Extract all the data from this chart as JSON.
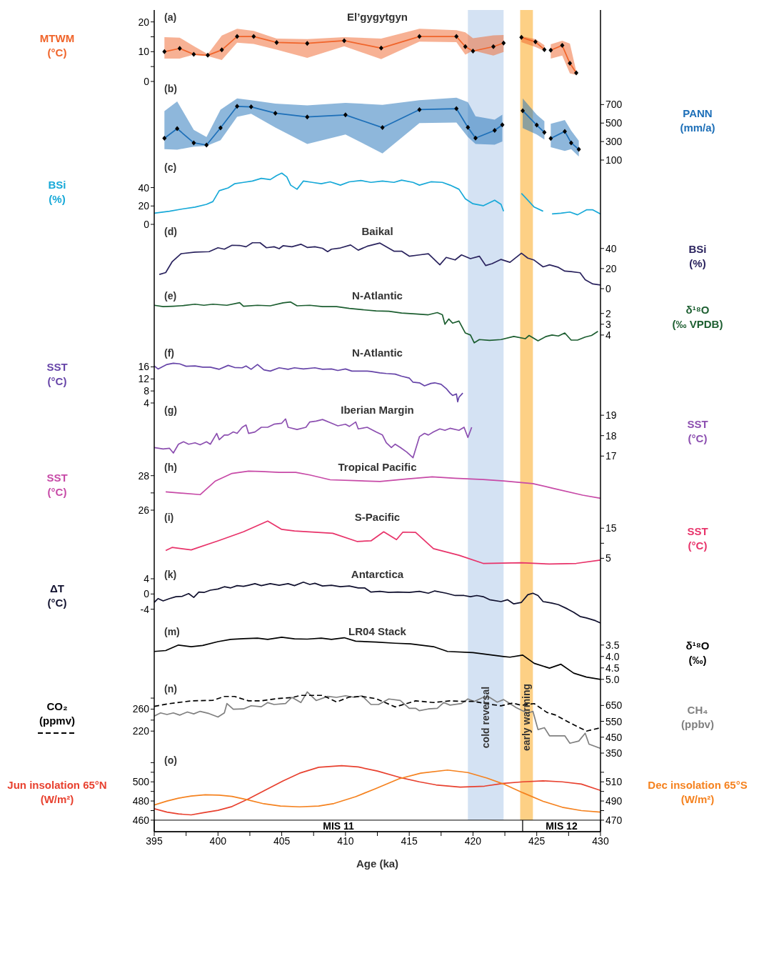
{
  "chart_data": [
    {
      "type": "line",
      "title": "El’gygytgyn",
      "ylabel": "MTWM (°C)",
      "annotations": [
        "(a)"
      ],
      "marker": "diamond",
      "tick_labels": "y",
      "xlim": [
        395,
        430
      ],
      "ylim": [
        0,
        24
      ],
      "yticks": [
        0,
        {
          "value": 5,
          "label": null
        },
        10,
        {
          "value": 15,
          "label": null
        },
        20
      ],
      "bands": [
        {
          "axis": "x",
          "from": 419.6,
          "to": 422.4,
          "color": "#d4e2f3"
        },
        {
          "axis": "x",
          "from": 423.7,
          "to": 424.7,
          "color": "#fdd085"
        }
      ],
      "series": [
        {
          "color": "#f0642a",
          "x": [
            395.8,
            397.0,
            398.1,
            399.2,
            400.3,
            401.5,
            402.8,
            404.6,
            407.0,
            409.9,
            412.8,
            415.8,
            418.7,
            419.4,
            420.0,
            421.6,
            422.4,
            423.0,
            423.8,
            424.9,
            425.6,
            425.9,
            426.1,
            427.0,
            427.6,
            428.1
          ],
          "values": [
            10,
            11.1,
            9.1,
            8.8,
            10.6,
            15.1,
            15.1,
            13.1,
            12.8,
            13.7,
            11.2,
            15.1,
            15.1,
            11.7,
            10.2,
            11.7,
            12.9,
            null,
            14.8,
            13.3,
            10.7,
            null,
            10.5,
            12.1,
            6.1,
            2.9
          ],
          "upper": [
            14.9,
            14.7,
            11.9,
            9.2,
            15.4,
            17.7,
            17.0,
            14.4,
            14.2,
            14.9,
            14.4,
            17.7,
            17.2,
            16.5,
            14.5,
            15.5,
            15.6,
            null,
            15.2,
            14.2,
            12.2,
            null,
            12.5,
            13.7,
            12.7,
            3.4
          ],
          "lower": [
            7.7,
            7.7,
            9.0,
            8.5,
            7.2,
            13.0,
            12.6,
            10.7,
            7.9,
            11.8,
            7.5,
            13.4,
            13.2,
            9.0,
            10.4,
            8.7,
            9.9,
            null,
            13.2,
            11.6,
            10.2,
            null,
            7.7,
            8.7,
            2.7,
            2.2
          ]
        }
      ]
    },
    {
      "type": "line",
      "y2label": "PANN (mm/a)",
      "annotations": [
        "(b)"
      ],
      "marker": "diamond",
      "tick_labels": "y",
      "xlim": [
        395,
        430
      ],
      "y2lim": [
        100,
        950
      ],
      "y2ticks": [
        100,
        300,
        500,
        700
      ],
      "bands": [
        {
          "axis": "x",
          "from": 419.6,
          "to": 422.4,
          "color": "#d4e2f3"
        },
        {
          "axis": "x",
          "from": 423.7,
          "to": 424.7,
          "color": "#fdd085"
        }
      ],
      "series": [
        {
          "color": "#1d6fb8",
          "axis": "y2",
          "x": [
            395.8,
            396.8,
            398.1,
            399.1,
            400.2,
            401.5,
            402.6,
            404.5,
            407.0,
            410.0,
            412.9,
            415.8,
            418.7,
            419.6,
            420.2,
            421.7,
            422.3,
            423.0,
            423.9,
            425.0,
            425.6,
            425.9,
            426.1,
            427.2,
            427.7,
            428.3
          ],
          "values": [
            336,
            440,
            286,
            262,
            448,
            681,
            675,
            607,
            566,
            588,
            451,
            645,
            656,
            453,
            338,
            421,
            481,
            null,
            634,
            478,
            399,
            null,
            333,
            410,
            286,
            215
          ],
          "upper": [
            629,
            733,
            426,
            349,
            645,
            766,
            747,
            711,
            692,
            719,
            697,
            747,
            774,
            725,
            574,
            536,
            590,
            null,
            766,
            590,
            519,
            null,
            492,
            533,
            418,
            308
          ],
          "lower": [
            218,
            212,
            245,
            253,
            314,
            568,
            601,
            451,
            273,
            377,
            171,
            500,
            505,
            349,
            273,
            267,
            300,
            null,
            445,
            377,
            322,
            null,
            240,
            199,
            218,
            138
          ]
        }
      ]
    },
    {
      "type": "line",
      "ylabel": "BSi (%)",
      "annotations": [
        "(c)"
      ],
      "tick_labels": "y",
      "xlim": [
        395,
        430
      ],
      "ylim": [
        0,
        70
      ],
      "yticks": [
        0,
        20,
        40
      ],
      "bands": [
        {
          "axis": "x",
          "from": 419.6,
          "to": 422.4,
          "color": "#d4e2f3"
        },
        {
          "axis": "x",
          "from": 423.7,
          "to": 424.7,
          "color": "#fdd085"
        }
      ],
      "series": [
        {
          "color": "#18a9d8",
          "x": [
            395.0,
            396.2,
            397.2,
            398.2,
            399.1,
            399.6,
            400.1,
            400.8,
            401.3,
            402.0,
            402.7,
            403.4,
            404.1,
            404.6,
            405.0,
            405.4,
            405.7,
            406.2,
            406.7,
            407.4,
            408.1,
            408.8,
            409.6,
            410.3,
            411.2,
            412.0,
            412.9,
            413.8,
            414.4,
            415.3,
            415.8,
            416.7,
            417.6,
            418.2,
            418.9,
            419.4,
            420.0,
            420.8,
            421.7,
            422.2,
            422.4,
            423.0,
            423.8,
            424.3,
            424.8,
            425.5,
            425.8,
            426.2,
            426.9,
            427.6,
            428.2,
            428.9,
            429.4,
            430.0
          ],
          "values": [
            12.2,
            14.3,
            16.7,
            18.8,
            21.8,
            24.8,
            36.7,
            39.7,
            44.2,
            45.7,
            47.2,
            50.1,
            48.7,
            53.1,
            55.8,
            51.6,
            42.7,
            38.2,
            47.2,
            45.7,
            44.2,
            46.3,
            42.7,
            46.3,
            47.8,
            45.7,
            47.2,
            45.7,
            48.1,
            45.7,
            42.7,
            46.3,
            45.7,
            42.7,
            38.2,
            27.8,
            22.4,
            20.3,
            26.3,
            21.8,
            14.3,
            null,
            33.7,
            26.3,
            18.8,
            14.3,
            null,
            11.3,
            12.2,
            13.4,
            10.4,
            15.8,
            15.8,
            11.3
          ]
        }
      ]
    },
    {
      "type": "line",
      "title": "Baikal",
      "y2label": "BSi (%)",
      "annotations": [
        "(d)"
      ],
      "tick_labels": "y",
      "xlim": [
        395,
        430
      ],
      "y2lim": [
        0,
        64
      ],
      "y2ticks": [
        0,
        20,
        40
      ],
      "bands": [
        {
          "axis": "x",
          "from": 419.6,
          "to": 422.4,
          "color": "#d4e2f3"
        },
        {
          "axis": "x",
          "from": 423.7,
          "to": 424.7,
          "color": "#fdd085"
        }
      ],
      "series": [
        {
          "color": "#2a235e",
          "axis": "y2",
          "x": [
            395.4,
            395.9,
            396.4,
            397.1,
            398.2,
            399.3,
            400.0,
            400.5,
            401.1,
            401.7,
            402.2,
            402.7,
            403.3,
            403.8,
            404.4,
            404.8,
            405.1,
            405.8,
            406.5,
            407.0,
            407.6,
            408.2,
            408.6,
            408.9,
            409.6,
            410.4,
            411.0,
            411.7,
            412.7,
            413.8,
            414.4,
            415.0,
            415.8,
            416.5,
            417.4,
            417.9,
            418.6,
            419.1,
            419.8,
            420.5,
            421.0,
            421.5,
            422.2,
            422.9,
            423.8,
            424.3,
            424.8,
            425.5,
            426.0,
            426.7,
            427.2,
            427.7,
            428.4,
            428.8,
            429.4,
            430.0
          ],
          "values": [
            14.1,
            16.0,
            26.7,
            34.8,
            36.3,
            36.8,
            40.7,
            39.3,
            43.2,
            43.0,
            41.7,
            45.7,
            45.7,
            40.7,
            41.7,
            39.8,
            42.7,
            41.7,
            44.2,
            41.0,
            41.7,
            40.2,
            36.8,
            39.3,
            40.5,
            43.5,
            38.3,
            42.2,
            45.4,
            37.3,
            37.3,
            32.3,
            33.6,
            34.8,
            23.7,
            31.1,
            28.6,
            33.6,
            29.9,
            32.3,
            23.0,
            24.9,
            29.1,
            26.2,
            35.3,
            30.4,
            28.4,
            21.7,
            23.7,
            21.2,
            17.5,
            17.0,
            15.8,
            8.9,
            4.7,
            3.7
          ]
        }
      ]
    },
    {
      "type": "line",
      "title": "N-Atlantic",
      "y2label": "δ¹⁸O (‰ VPDB)",
      "annotations": [
        "(e)"
      ],
      "tick_labels": "y",
      "xlim": [
        395,
        430
      ],
      "y2lim": [
        5,
        -0.3
      ],
      "y2ticks": [
        2,
        3,
        4
      ],
      "bands": [
        {
          "axis": "x",
          "from": 419.6,
          "to": 422.4,
          "color": "#d4e2f3"
        },
        {
          "axis": "x",
          "from": 423.7,
          "to": 424.7,
          "color": "#fdd085"
        }
      ],
      "series": [
        {
          "color": "#1c5e30",
          "axis": "y2",
          "x": [
            395.0,
            395.7,
            396.5,
            397.3,
            398.2,
            398.9,
            399.6,
            400.7,
            401.7,
            402.0,
            403.1,
            404.1,
            405.1,
            405.7,
            406.2,
            407.2,
            408.2,
            409.3,
            410.3,
            411.3,
            412.4,
            413.4,
            414.4,
            415.5,
            416.5,
            417.2,
            417.6,
            417.8,
            418.1,
            418.4,
            418.9,
            419.4,
            419.8,
            420.1,
            420.5,
            421.3,
            422.2,
            423.2,
            424.1,
            424.4,
            425.1,
            425.7,
            426.2,
            426.7,
            427.2,
            427.7,
            428.2,
            428.8,
            429.3,
            429.8
          ],
          "values": [
            1.24,
            1.37,
            1.33,
            1.27,
            1.14,
            1.24,
            1.14,
            1.24,
            1.0,
            1.33,
            1.24,
            1.29,
            1.02,
            0.94,
            1.29,
            1.24,
            1.37,
            1.37,
            1.53,
            1.65,
            1.76,
            1.8,
            1.96,
            2.04,
            2.12,
            1.92,
            2.12,
            3.0,
            2.51,
            2.9,
            2.71,
            3.81,
            4.0,
            4.72,
            4.42,
            4.49,
            4.42,
            4.13,
            4.34,
            4.04,
            4.53,
            4.15,
            4.0,
            4.09,
            3.81,
            4.47,
            4.47,
            4.19,
            4.04,
            3.66
          ]
        }
      ]
    },
    {
      "type": "line",
      "title": "N-Atlantic",
      "ylabel": "SST (°C)",
      "annotations": [
        "(f)"
      ],
      "tick_labels": "y",
      "xlim": [
        395,
        430
      ],
      "ylim": [
        4,
        23
      ],
      "yticks": [
        4,
        8,
        12,
        16
      ],
      "bands": [
        {
          "axis": "x",
          "from": 419.6,
          "to": 422.4,
          "color": "#d4e2f3"
        },
        {
          "axis": "x",
          "from": 423.7,
          "to": 424.7,
          "color": "#fdd085"
        }
      ],
      "series": [
        {
          "color": "#6644a8",
          "x": [
            395.0,
            395.3,
            396.0,
            396.5,
            397.0,
            397.5,
            398.2,
            398.8,
            399.4,
            400.1,
            400.8,
            401.3,
            401.9,
            402.2,
            402.6,
            403.1,
            403.6,
            404.1,
            404.8,
            405.5,
            406.0,
            406.7,
            407.6,
            408.2,
            408.9,
            409.4,
            410.0,
            410.5,
            411.0,
            411.7,
            412.0,
            412.7,
            413.2,
            413.9,
            414.4,
            415.0,
            415.3,
            415.8,
            416.2,
            416.7,
            417.0,
            417.5,
            417.9,
            418.2,
            418.4,
            418.7,
            418.8,
            418.9,
            419.2
          ],
          "values": [
            16.3,
            15.3,
            16.8,
            17.2,
            17.0,
            16.2,
            16.3,
            15.9,
            15.9,
            15.2,
            16.5,
            15.8,
            15.7,
            16.3,
            15.2,
            16.8,
            15.0,
            14.6,
            15.7,
            15.2,
            15.7,
            15.3,
            15.7,
            15.2,
            15.3,
            14.8,
            15.3,
            14.6,
            14.6,
            14.6,
            14.5,
            14.0,
            13.8,
            13.6,
            12.9,
            12.3,
            10.9,
            10.7,
            9.7,
            10.5,
            10.7,
            10.2,
            8.8,
            7.3,
            6.5,
            7.0,
            4.4,
            5.9,
            7.3
          ]
        }
      ]
    },
    {
      "type": "line",
      "title": "Iberian Margin",
      "y2label": "SST (°C)",
      "annotations": [
        "(g)"
      ],
      "tick_labels": "y",
      "xlim": [
        395,
        430
      ],
      "y2lim": [
        16.8,
        19.6
      ],
      "y2ticks": [
        17,
        18,
        19
      ],
      "bands": [
        {
          "axis": "x",
          "from": 419.6,
          "to": 422.4,
          "color": "#d4e2f3"
        },
        {
          "axis": "x",
          "from": 423.7,
          "to": 424.7,
          "color": "#fdd085"
        }
      ],
      "series": [
        {
          "color": "#8c4fb0",
          "axis": "y2",
          "x": [
            395.0,
            395.7,
            396.2,
            396.5,
            396.9,
            397.3,
            397.7,
            398.2,
            398.6,
            399.1,
            399.4,
            399.9,
            400.1,
            400.5,
            400.8,
            401.2,
            401.5,
            401.9,
            402.2,
            402.4,
            402.9,
            403.4,
            403.9,
            404.4,
            405.0,
            405.3,
            405.5,
            406.2,
            406.9,
            407.2,
            407.7,
            408.2,
            408.9,
            409.4,
            410.0,
            410.3,
            410.8,
            411.0,
            411.7,
            412.4,
            412.9,
            413.2,
            413.6,
            413.9,
            414.3,
            414.8,
            415.3,
            415.8,
            416.2,
            416.5,
            416.9,
            417.4,
            417.8,
            418.2,
            418.9,
            419.3,
            419.6,
            419.9
          ],
          "values": [
            17.42,
            17.35,
            17.38,
            17.15,
            17.58,
            17.7,
            17.58,
            17.65,
            17.55,
            17.7,
            17.58,
            18.11,
            17.8,
            18.03,
            18.03,
            18.18,
            18.11,
            18.41,
            18.52,
            18.11,
            18.18,
            18.41,
            18.41,
            18.56,
            18.61,
            18.82,
            18.41,
            18.3,
            18.41,
            18.67,
            18.71,
            18.79,
            18.61,
            18.48,
            18.56,
            18.45,
            18.67,
            18.33,
            18.41,
            18.18,
            18.03,
            17.65,
            17.42,
            17.58,
            17.42,
            17.2,
            16.92,
            17.95,
            18.11,
            18.03,
            18.18,
            18.33,
            18.26,
            18.36,
            18.26,
            18.41,
            17.91,
            18.41
          ]
        }
      ]
    },
    {
      "type": "line",
      "title": "Tropical Pacific",
      "ylabel": "SST (°C)",
      "annotations": [
        "(h)"
      ],
      "tick_labels": "y",
      "xlim": [
        395,
        430
      ],
      "ylim": [
        26,
        28.9
      ],
      "yticks": [
        26,
        {
          "value": 27,
          "label": null
        },
        28
      ],
      "bands": [
        {
          "axis": "x",
          "from": 419.6,
          "to": 422.4,
          "color": "#d4e2f3"
        },
        {
          "axis": "x",
          "from": 423.7,
          "to": 424.7,
          "color": "#fdd085"
        }
      ],
      "series": [
        {
          "color": "#c74aa7",
          "x": [
            395.9,
            398.6,
            399.8,
            401.1,
            402.4,
            403.4,
            404.8,
            406.1,
            407.2,
            408.8,
            410.7,
            412.7,
            414.8,
            416.8,
            418.6,
            420.8,
            422.4,
            424.7,
            426.2,
            428.6,
            430.0
          ],
          "values": [
            27.06,
            26.9,
            27.69,
            28.13,
            28.26,
            28.24,
            28.19,
            28.19,
            28.04,
            27.76,
            27.71,
            27.66,
            27.81,
            27.93,
            27.85,
            27.78,
            27.69,
            27.54,
            27.28,
            26.87,
            26.69
          ]
        }
      ]
    },
    {
      "type": "line",
      "title": "S-Pacific",
      "y2label": "SST (°C)",
      "annotations": [
        "(i)"
      ],
      "tick_labels": "y",
      "xlim": [
        395,
        430
      ],
      "y2lim": [
        2,
        21
      ],
      "y2ticks": [
        5,
        {
          "value": 10,
          "label": null
        },
        15
      ],
      "bands": [
        {
          "axis": "x",
          "from": 419.6,
          "to": 422.4,
          "color": "#d4e2f3"
        },
        {
          "axis": "x",
          "from": 423.7,
          "to": 424.7,
          "color": "#fdd085"
        }
      ],
      "series": [
        {
          "color": "#e8336a",
          "axis": "y2",
          "x": [
            395.9,
            396.4,
            397.9,
            400.0,
            402.0,
            403.9,
            405.0,
            406.0,
            409.0,
            410.9,
            412.0,
            413.0,
            414.0,
            414.5,
            415.5,
            416.9,
            418.9,
            420.8,
            423.8,
            426.0,
            428.1,
            430.0
          ],
          "values": [
            7.6,
            8.6,
            7.8,
            10.8,
            13.8,
            17.4,
            14.6,
            14.1,
            13.3,
            10.6,
            10.8,
            13.8,
            11.2,
            13.7,
            13.6,
            8.2,
            6.0,
            3.3,
            3.5,
            3.1,
            3.3,
            4.4
          ]
        }
      ]
    },
    {
      "type": "line",
      "title": "Antarctica",
      "ylabel": "ΔT (°C)",
      "annotations": [
        "(k)"
      ],
      "tick_labels": "y",
      "xlim": [
        395,
        430
      ],
      "ylim": [
        -8,
        7
      ],
      "yticks": [
        -4,
        0,
        4
      ],
      "bands": [
        {
          "axis": "x",
          "from": 419.6,
          "to": 422.4,
          "color": "#d4e2f3"
        },
        {
          "axis": "x",
          "from": 423.7,
          "to": 424.7,
          "color": "#fdd085"
        }
      ],
      "series": [
        {
          "color": "#10102e",
          "x": [
            395.0,
            395.3,
            395.7,
            396.2,
            396.7,
            397.2,
            397.7,
            398.1,
            398.5,
            398.9,
            399.4,
            400.0,
            400.5,
            401.0,
            401.5,
            402.0,
            402.4,
            402.9,
            403.4,
            404.1,
            404.8,
            405.5,
            406.0,
            406.7,
            407.2,
            407.6,
            408.2,
            408.9,
            409.6,
            410.3,
            411.0,
            411.5,
            412.0,
            412.7,
            413.4,
            414.1,
            415.0,
            415.8,
            416.5,
            417.0,
            417.9,
            418.6,
            419.3,
            419.8,
            420.3,
            420.8,
            421.3,
            422.2,
            422.7,
            423.2,
            423.8,
            424.3,
            424.7,
            425.1,
            425.5,
            426.2,
            426.7,
            427.4,
            427.9,
            428.4,
            428.9,
            429.6,
            430.0
          ],
          "values": [
            -2.2,
            -1.2,
            -1.8,
            -1.2,
            -0.7,
            -0.6,
            0.1,
            -0.9,
            0.5,
            0.4,
            1.0,
            1.3,
            1.9,
            1.6,
            2.2,
            2.0,
            2.3,
            2.7,
            2.2,
            2.7,
            2.3,
            2.7,
            2.2,
            3.1,
            2.5,
            2.8,
            2.1,
            2.3,
            1.9,
            2.1,
            1.6,
            1.6,
            0.5,
            0.7,
            0.4,
            0.5,
            0.4,
            0.7,
            0.2,
            0.8,
            0.2,
            -0.4,
            -0.4,
            -0.7,
            -0.4,
            -0.7,
            -1.5,
            -2.0,
            -1.5,
            -2.6,
            -2.2,
            -0.2,
            0.2,
            -0.4,
            -2.0,
            -2.4,
            -2.8,
            -3.9,
            -4.8,
            -5.9,
            -6.3,
            -7.0,
            -7.6
          ]
        }
      ]
    },
    {
      "type": "line",
      "title": "LR04 Stack",
      "y2label": "δ¹⁸O (‰)",
      "annotations": [
        "(m)"
      ],
      "tick_labels": "y",
      "xlim": [
        395,
        430
      ],
      "y2lim": [
        5.1,
        2.6
      ],
      "y2ticks": [
        3.5,
        {
          "value": 4,
          "label": "4.0"
        },
        4.5,
        {
          "value": 5,
          "label": "5.0"
        }
      ],
      "bands": [
        {
          "axis": "x",
          "from": 419.6,
          "to": 422.4,
          "color": "#d4e2f3"
        },
        {
          "axis": "x",
          "from": 423.7,
          "to": 424.7,
          "color": "#fdd085"
        }
      ],
      "series": [
        {
          "color": "#000000",
          "axis": "y2",
          "x": [
            395.0,
            395.9,
            396.9,
            397.9,
            398.8,
            400.0,
            401.0,
            402.0,
            403.1,
            403.9,
            405.0,
            406.0,
            407.0,
            408.1,
            408.9,
            409.9,
            410.8,
            412.4,
            413.9,
            415.1,
            416.9,
            418.0,
            420.0,
            422.4,
            422.9,
            423.9,
            424.8,
            426.0,
            426.9,
            427.9,
            428.9,
            430.0
          ],
          "values": [
            3.78,
            3.74,
            3.5,
            3.57,
            3.52,
            3.35,
            3.25,
            3.22,
            3.2,
            3.25,
            3.16,
            3.23,
            3.24,
            3.2,
            3.25,
            3.18,
            3.33,
            3.37,
            3.42,
            3.45,
            3.57,
            3.78,
            3.83,
            4.0,
            4.03,
            3.94,
            4.3,
            4.51,
            4.34,
            4.73,
            4.9,
            5.0
          ]
        }
      ]
    },
    {
      "type": "line",
      "ylabel": "CO₂ (ppmv)",
      "y2label": "CH₄ (ppbv)",
      "annotations": [
        "(n)"
      ],
      "tick_labels": "y",
      "xlim": [
        395,
        430
      ],
      "ylim": [
        180,
        310
      ],
      "yticks": [
        220,
        {
          "value": 240,
          "label": null
        },
        260,
        {
          "value": 280,
          "label": null
        }
      ],
      "y2lim": [
        350,
        800
      ],
      "y2ticks": [
        350,
        450,
        550,
        650
      ],
      "bands": [
        {
          "axis": "x",
          "from": 419.6,
          "to": 422.4,
          "color": "#d4e2f3",
          "label": "cold reversal"
        },
        {
          "axis": "x",
          "from": 423.7,
          "to": 424.7,
          "color": "#fdd085",
          "label": "early warming"
        }
      ],
      "series": [
        {
          "color": "#808080",
          "axis": "y2",
          "x": [
            395.0,
            395.5,
            396.0,
            396.5,
            397.0,
            397.6,
            398.1,
            398.6,
            399.3,
            400.0,
            400.5,
            400.7,
            401.2,
            402.0,
            402.6,
            403.4,
            403.9,
            404.4,
            405.3,
            405.8,
            406.5,
            407.0,
            407.7,
            408.6,
            409.3,
            410.0,
            410.7,
            411.3,
            412.0,
            412.6,
            413.4,
            414.3,
            415.0,
            415.5,
            415.8,
            416.5,
            417.2,
            417.7,
            418.2,
            419.1,
            419.6,
            420.1,
            420.8,
            421.3,
            421.9,
            422.4,
            422.9,
            423.4,
            424.3,
            424.7,
            425.1,
            425.6,
            426.0,
            426.7,
            427.2,
            427.6,
            428.3,
            428.8,
            429.1,
            430.0
          ],
          "values": [
            583,
            603,
            593,
            603,
            589,
            609,
            597,
            613,
            599,
            577,
            603,
            662,
            626,
            628,
            648,
            642,
            668,
            656,
            662,
            701,
            668,
            735,
            681,
            707,
            701,
            711,
            701,
            711,
            656,
            656,
            691,
            681,
            632,
            632,
            617,
            628,
            632,
            668,
            652,
            662,
            691,
            675,
            701,
            701,
            671,
            687,
            662,
            636,
            601,
            613,
            498,
            510,
            459,
            459,
            459,
            412,
            426,
            475,
            406,
            380
          ]
        },
        {
          "color": "#000000",
          "line_style": "dashed",
          "x": [
            395.0,
            396.2,
            397.9,
            399.6,
            400.5,
            401.3,
            402.4,
            403.4,
            404.6,
            405.8,
            406.5,
            408.2,
            409.3,
            410.3,
            411.3,
            412.4,
            413.9,
            415.5,
            416.9,
            418.2,
            419.3,
            420.1,
            421.0,
            422.2,
            423.1,
            423.8,
            424.8,
            425.8,
            426.5,
            427.6,
            428.9,
            430.0
          ],
          "values": [
            265,
            270,
            275,
            276,
            283,
            283,
            275,
            275,
            279,
            281,
            285,
            285,
            273,
            282,
            283,
            279,
            264,
            275,
            272,
            275,
            274,
            274,
            270,
            266,
            271,
            267,
            270,
            254,
            249,
            235,
            220,
            226
          ]
        }
      ]
    },
    {
      "type": "line",
      "ylabel": "Jun insolation 65°N (W/m²)",
      "y2label": "Dec insolation 65°S (W/m²)",
      "xlabel": "Age (ka)",
      "annotations": [
        "(o)"
      ],
      "xlim": [
        395,
        430
      ],
      "xticks": [
        395,
        {
          "value": 397.5,
          "label": null
        },
        400,
        {
          "value": 402.5,
          "label": null
        },
        405,
        {
          "value": 407.5,
          "label": null
        },
        410,
        {
          "value": 412.5,
          "label": null
        },
        415,
        {
          "value": 417.5,
          "label": null
        },
        420,
        {
          "value": 422.5,
          "label": null
        },
        425,
        {
          "value": 427.5,
          "label": null
        },
        430
      ],
      "ylim": [
        448,
        530
      ],
      "yticks": [
        460,
        {
          "value": 470,
          "label": null
        },
        480,
        {
          "value": 490,
          "label": null
        },
        500,
        {
          "value": 510,
          "label": null
        },
        {
          "value": 520,
          "label": null
        }
      ],
      "y2lim": [
        458,
        540
      ],
      "y2ticks": [
        470,
        {
          "value": 480,
          "label": null
        },
        490,
        {
          "value": 500,
          "label": null
        },
        510,
        {
          "value": 520,
          "label": null
        }
      ],
      "bands": [
        {
          "axis": "x",
          "from": 419.6,
          "to": 422.4,
          "color": "#d4e2f3"
        },
        {
          "axis": "x",
          "from": 423.7,
          "to": 424.7,
          "color": "#fdd085"
        },
        {
          "axis": "x",
          "from": 395,
          "to": 423.9,
          "label": "MIS 11"
        },
        {
          "axis": "x",
          "from": 423.9,
          "to": 430,
          "label": "MIS 12"
        }
      ],
      "series": [
        {
          "color": "#e8412f",
          "x": [
            395.0,
            396.0,
            396.9,
            397.9,
            398.8,
            400.0,
            401.1,
            402.4,
            403.8,
            405.1,
            406.4,
            407.9,
            409.7,
            411.0,
            412.5,
            414.2,
            415.8,
            417.1,
            419.0,
            420.9,
            422.4,
            423.9,
            425.5,
            427.0,
            428.5,
            430.0
          ],
          "values": [
            471.9,
            468.4,
            466.5,
            465.5,
            467.7,
            470.3,
            474.2,
            482.3,
            491.9,
            501,
            509,
            515.2,
            516.8,
            515.5,
            511.3,
            504.8,
            500,
            496.8,
            494.5,
            495.5,
            498.4,
            500,
            501,
            500,
            497.7,
            491
          ]
        },
        {
          "color": "#f5821f",
          "axis": "y2",
          "x": [
            395.0,
            396.0,
            396.9,
            397.9,
            399.0,
            400.1,
            401.1,
            402.2,
            403.6,
            404.9,
            406.4,
            407.9,
            409.1,
            410.8,
            412.3,
            414.2,
            415.9,
            418.0,
            419.6,
            421.1,
            422.4,
            423.9,
            425.5,
            427.0,
            428.5,
            430.0
          ],
          "values": [
            485.8,
            490,
            492.9,
            495.2,
            496.5,
            496.1,
            494.8,
            491.6,
            487.1,
            484.8,
            483.9,
            484.8,
            487.4,
            494.5,
            502.6,
            513.2,
            519,
            522.3,
            519.7,
            513.9,
            507.7,
            498.7,
            489.7,
            483.5,
            480,
            478.4
          ]
        }
      ]
    }
  ]
}
